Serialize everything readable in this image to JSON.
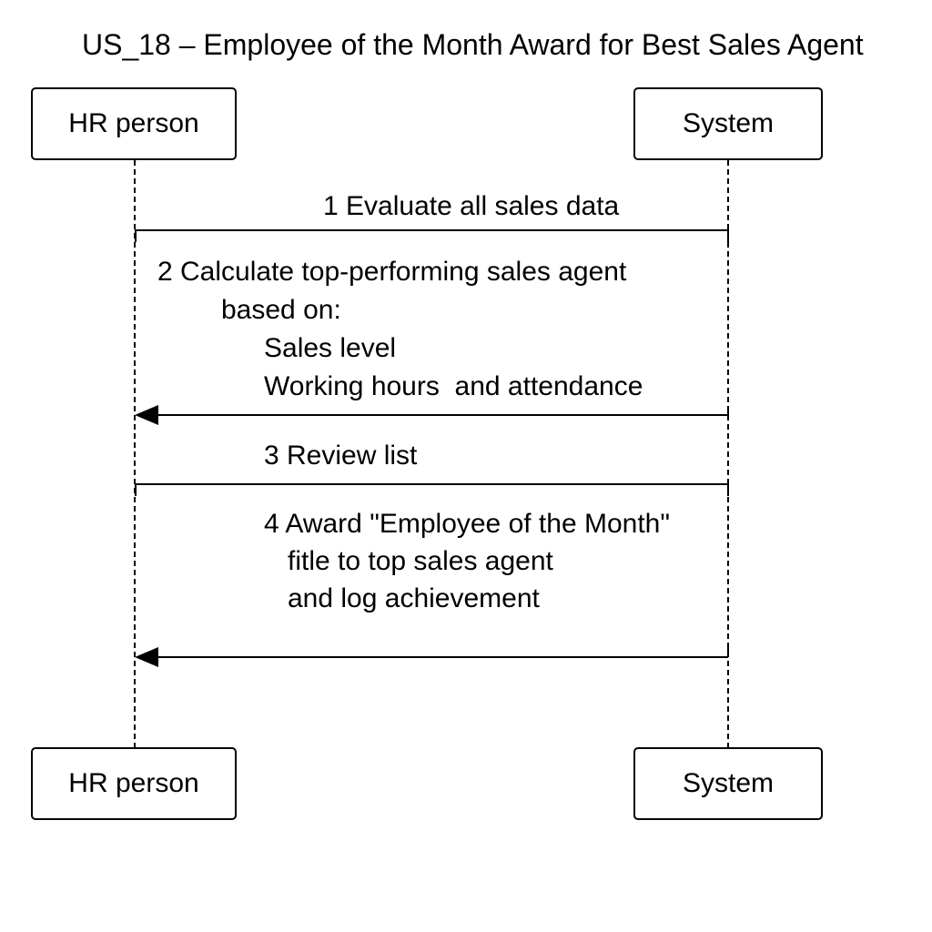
{
  "title": "US_18 – Employee of the Month Award for Best Sales Agent",
  "actors": {
    "left": "HR person",
    "right": "System"
  },
  "messages": [
    {
      "lines": [
        "1 Evaluate all sales data"
      ]
    },
    {
      "lines": [
        "2 Calculate top-performing sales agent",
        "based on:",
        "Sales level",
        "Working hours  and attendance"
      ]
    },
    {
      "lines": [
        "3 Review list"
      ]
    },
    {
      "lines": [
        "4 Award \"Employee of the Month\"",
        "fitle to top sales agent",
        "and log achievement"
      ]
    }
  ]
}
